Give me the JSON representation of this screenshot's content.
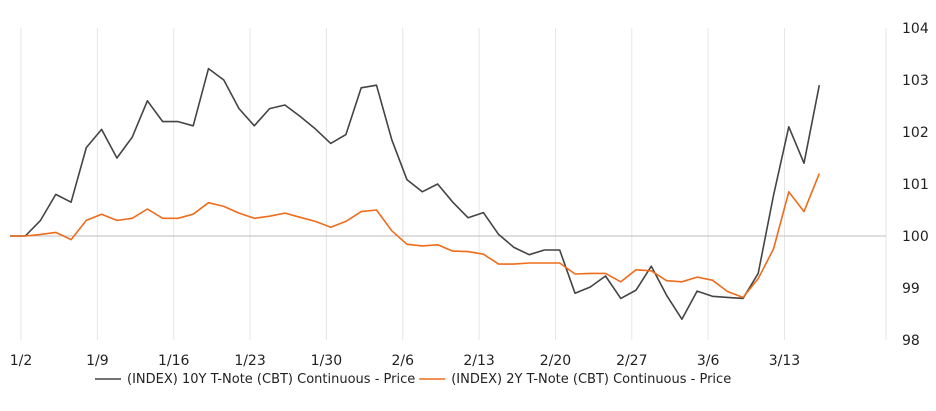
{
  "chart_data": {
    "type": "line",
    "title": "",
    "xlabel": "",
    "ylabel": "",
    "ylim": [
      98,
      104
    ],
    "y_ticks": [
      98,
      99,
      100,
      101,
      102,
      103,
      104
    ],
    "y_tick_labels": [
      "98",
      "99",
      "100",
      "101",
      "102",
      "103",
      "104"
    ],
    "x_tick_labels": [
      "1/2",
      "1/9",
      "1/16",
      "1/23",
      "1/30",
      "2/6",
      "2/13",
      "2/20",
      "2/27",
      "3/6",
      "3/13"
    ],
    "x_tick_index": [
      0,
      5,
      10,
      15,
      20,
      25,
      30,
      35,
      40,
      45,
      50
    ],
    "grid": true,
    "reference_line": 100,
    "legend_position": "bottom",
    "series": [
      {
        "name": "(INDEX) 10Y T-Note (CBT) Continuous - Price",
        "color": "#444444",
        "values": [
          100.0,
          100.0,
          100.3,
          100.8,
          100.65,
          101.7,
          102.05,
          101.5,
          101.9,
          102.6,
          102.2,
          102.2,
          102.12,
          103.22,
          103.0,
          102.45,
          102.12,
          102.45,
          102.52,
          102.3,
          102.06,
          101.78,
          101.95,
          102.85,
          102.9,
          101.85,
          101.08,
          100.85,
          101.0,
          100.65,
          100.35,
          100.45,
          100.03,
          99.78,
          99.64,
          99.73,
          99.73,
          98.9,
          99.02,
          99.23,
          98.8,
          98.96,
          99.42,
          98.86,
          98.4,
          98.94,
          98.84,
          98.82,
          98.8,
          99.28,
          100.78,
          102.1,
          101.4,
          102.9
        ]
      },
      {
        "name": "(INDEX) 2Y T-Note (CBT) Continuous - Price",
        "color": "#ef6c1c",
        "values": [
          100.0,
          100.0,
          100.03,
          100.07,
          99.93,
          100.3,
          100.42,
          100.3,
          100.34,
          100.52,
          100.34,
          100.34,
          100.42,
          100.64,
          100.57,
          100.44,
          100.34,
          100.38,
          100.44,
          100.36,
          100.28,
          100.17,
          100.28,
          100.47,
          100.5,
          100.1,
          99.84,
          99.81,
          99.83,
          99.71,
          99.7,
          99.65,
          99.46,
          99.46,
          99.48,
          99.48,
          99.48,
          99.27,
          99.28,
          99.28,
          99.12,
          99.35,
          99.33,
          99.14,
          99.12,
          99.21,
          99.15,
          98.93,
          98.82,
          99.18,
          99.75,
          100.85,
          100.47,
          101.2
        ]
      }
    ]
  }
}
